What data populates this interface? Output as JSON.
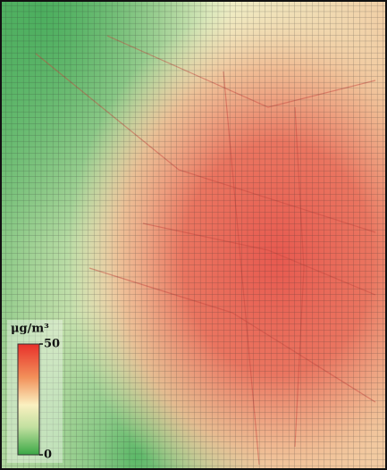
{
  "legend": {
    "unit": "μg/m³",
    "max": 50,
    "min": 0
  }
}
